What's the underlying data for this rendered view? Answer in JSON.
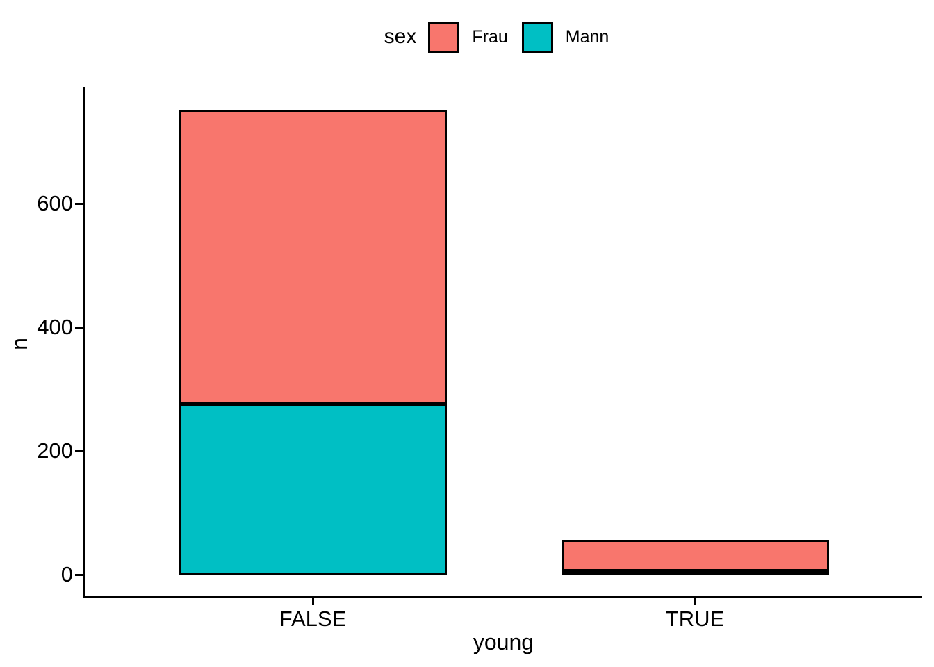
{
  "chart": {
    "legend": {
      "title": "sex",
      "items": [
        {
          "label": "Frau",
          "color": "#F8766D"
        },
        {
          "label": "Mann",
          "color": "#00BFC4"
        }
      ]
    },
    "y_axis": {
      "label": "n"
    },
    "x_axis": {
      "label": "young"
    }
  },
  "chart_data": {
    "type": "bar",
    "stacked": true,
    "title": "",
    "xlabel": "young",
    "ylabel": "n",
    "legend_title": "sex",
    "legend_position": "top",
    "categories": [
      "FALSE",
      "TRUE"
    ],
    "series": [
      {
        "name": "Mann",
        "color": "#00BFC4",
        "values": [
          275,
          6
        ]
      },
      {
        "name": "Frau",
        "color": "#F8766D",
        "values": [
          477,
          50
        ]
      }
    ],
    "stack_order_bottom_to_top": [
      "Mann",
      "Frau"
    ],
    "totals_per_category": [
      752,
      56
    ],
    "yticks": [
      0,
      200,
      400,
      600
    ],
    "ylim": [
      0,
      790
    ],
    "grid": false,
    "bar_outline_color": "#000000",
    "axis_color": "#000000",
    "text_color": "#000000",
    "background": "#FFFFFF"
  }
}
